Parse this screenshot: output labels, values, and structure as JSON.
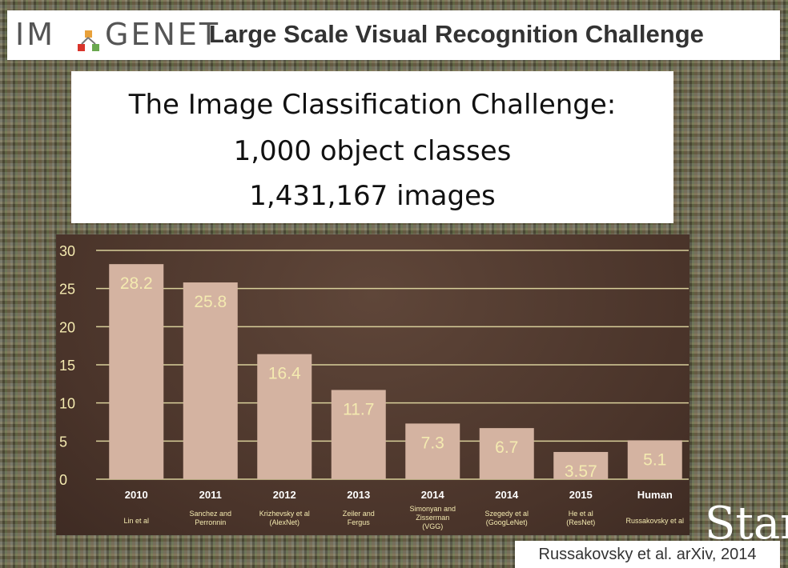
{
  "header": {
    "logo_part_a": "IM",
    "logo_part_b": "GENET",
    "title": "Large Scale Visual Recognition Challenge"
  },
  "info": {
    "line1": "The Image Classification Challenge:",
    "line2": "1,000 object classes",
    "line3": "1,431,167 images"
  },
  "chart_data": {
    "type": "bar",
    "categories": [
      "2010",
      "2011",
      "2012",
      "2013",
      "2014",
      "2014",
      "2015",
      "Human"
    ],
    "sublabels": [
      [
        "Lin et al"
      ],
      [
        "Sanchez and",
        "Perronnin"
      ],
      [
        "Krizhevsky et al",
        "(AlexNet)"
      ],
      [
        "Zeiler and",
        "Fergus"
      ],
      [
        "Simonyan and",
        "Zisserman",
        "(VGG)"
      ],
      [
        "Szegedy et al",
        "(GoogLeNet)"
      ],
      [
        "He et al",
        "(ResNet)"
      ],
      [
        "Russakovsky et al"
      ]
    ],
    "values": [
      28.2,
      25.8,
      16.4,
      11.7,
      7.3,
      6.7,
      3.57,
      5.1
    ],
    "value_labels": [
      "28.2",
      "25.8",
      "16.4",
      "11.7",
      "7.3",
      "6.7",
      "3.57",
      "5.1"
    ],
    "yticks": [
      "0",
      "5",
      "10",
      "15",
      "20",
      "25",
      "30"
    ],
    "ylim": [
      0,
      30
    ],
    "grid": true,
    "colors": {
      "bar": "#d4b3a1",
      "grid": "#d8cf9a",
      "text": "#f4eab0",
      "background": "#4a342a"
    }
  },
  "watermark": "Star",
  "citation": "Russakovsky et al. arXiv, 2014"
}
